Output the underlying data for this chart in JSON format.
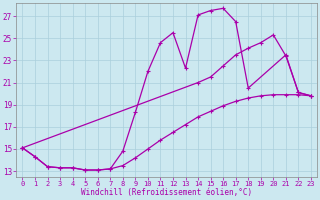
{
  "xlabel": "Windchill (Refroidissement éolien,°C)",
  "background_color": "#cce8f0",
  "grid_color": "#aacfdc",
  "line_color": "#aa00aa",
  "xlim": [
    -0.5,
    23.5
  ],
  "ylim": [
    12.5,
    28.2
  ],
  "xticks": [
    0,
    1,
    2,
    3,
    4,
    5,
    6,
    7,
    8,
    9,
    10,
    11,
    12,
    13,
    14,
    15,
    16,
    17,
    18,
    19,
    20,
    21,
    22,
    23
  ],
  "yticks": [
    13,
    15,
    17,
    19,
    21,
    23,
    25,
    27
  ],
  "curve1_x": [
    0,
    1,
    2,
    3,
    4,
    5,
    6,
    7,
    8,
    9,
    10,
    11,
    12,
    13,
    14,
    15,
    16,
    17,
    18,
    21,
    22,
    23
  ],
  "curve1_y": [
    15.1,
    14.3,
    13.4,
    13.3,
    13.3,
    13.1,
    13.1,
    13.2,
    14.8,
    18.3,
    22.0,
    24.6,
    25.5,
    22.3,
    27.1,
    27.5,
    27.7,
    26.5,
    20.5,
    23.5,
    20.1,
    19.8
  ],
  "curve2_x": [
    0,
    14,
    15,
    16,
    17,
    18,
    19,
    20,
    21,
    22,
    23
  ],
  "curve2_y": [
    15.1,
    21.0,
    21.5,
    22.5,
    23.5,
    24.1,
    24.6,
    25.3,
    23.4,
    20.1,
    19.8
  ],
  "curve3_x": [
    0,
    1,
    2,
    3,
    4,
    5,
    6,
    7,
    8,
    9,
    10,
    11,
    12,
    13,
    14,
    15,
    16,
    17,
    18,
    19,
    20,
    21,
    22,
    23
  ],
  "curve3_y": [
    15.1,
    14.3,
    13.4,
    13.3,
    13.3,
    13.1,
    13.1,
    13.2,
    13.5,
    14.2,
    15.0,
    15.8,
    16.5,
    17.2,
    17.9,
    18.4,
    18.9,
    19.3,
    19.6,
    19.8,
    19.9,
    19.9,
    19.9,
    19.8
  ],
  "figsize": [
    3.2,
    2.0
  ],
  "dpi": 100
}
